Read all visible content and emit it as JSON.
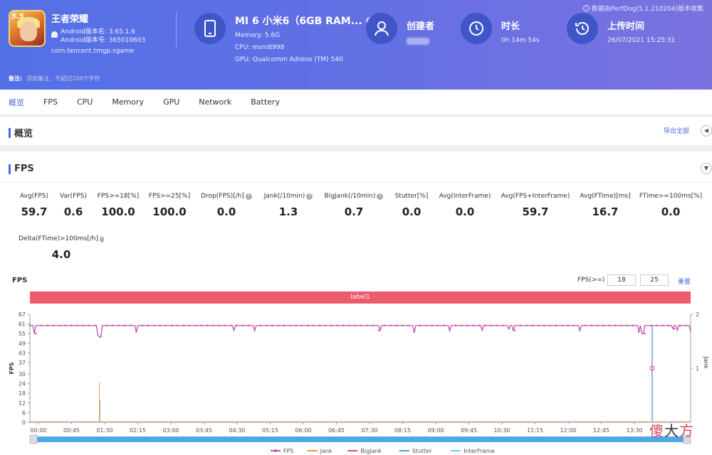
{
  "header": {
    "notice": "数据由PerfDog(5.1.210204)版本收集",
    "app": {
      "name": "王者荣耀",
      "badge": "5.5",
      "version_label": "Android版本名: 3.65.1.6",
      "build_label": "Android版本号: 365010603",
      "package": "com.tencent.tmgp.sgame"
    },
    "device": {
      "name": "MI 6 小米6（6GB RAM...",
      "memory": "Memory: 5.6G",
      "cpu": "CPU: msm8998",
      "gpu": "GPU: Qualcomm Adreno (TM) 540"
    },
    "creator": {
      "label": "创建者"
    },
    "duration": {
      "label": "时长",
      "value": "0h 14m 54s"
    },
    "upload": {
      "label": "上传时间",
      "value": "26/07/2021 15:25:31"
    },
    "remark": {
      "label": "备注:",
      "placeholder": "添加备注，不超过200个字符"
    }
  },
  "tabs": [
    "概览",
    "FPS",
    "CPU",
    "Memory",
    "GPU",
    "Network",
    "Battery"
  ],
  "overview": {
    "title": "概览",
    "export": "导出全部"
  },
  "fps_section": {
    "title": "FPS",
    "metrics": [
      {
        "label": "Avg(FPS)",
        "value": "59.7",
        "help": false
      },
      {
        "label": "Var(FPS)",
        "value": "0.6",
        "help": false
      },
      {
        "label": "FPS>=18[%]",
        "value": "100.0",
        "help": false
      },
      {
        "label": "FPS>=25[%]",
        "value": "100.0",
        "help": false
      },
      {
        "label": "Drop(FPS)[/h]",
        "value": "0.0",
        "help": true
      },
      {
        "label": "Jank(/10min)",
        "value": "1.3",
        "help": true
      },
      {
        "label": "BigJank(/10min)",
        "value": "0.7",
        "help": true
      },
      {
        "label": "Stutter[%]",
        "value": "0.0",
        "help": false
      },
      {
        "label": "Avg(InterFrame)",
        "value": "0.0",
        "help": false
      },
      {
        "label": "Avg(FPS+InterFrame)",
        "value": "59.7",
        "help": false
      },
      {
        "label": "Avg(FTime)[ms]",
        "value": "16.7",
        "help": false
      },
      {
        "label": "FTime>=100ms[%]",
        "value": "0.0",
        "help": false
      },
      {
        "label": "Delta(FTime)>100ms[/h]",
        "value": "4.0",
        "help": true
      }
    ],
    "chart_title": "FPS",
    "threshold": {
      "label": "FPS(>=)",
      "low": "18",
      "high": "25",
      "reset": "重置"
    },
    "label_bar": "label1"
  },
  "chart_data": {
    "type": "line",
    "ylabel": "FPS",
    "y2label": "Jank",
    "yticks": [
      0,
      6,
      12,
      18,
      24,
      30,
      37,
      43,
      49,
      55,
      61,
      67
    ],
    "ylim": [
      0,
      67
    ],
    "y2ticks": [
      1,
      2
    ],
    "y2lim": [
      0,
      2
    ],
    "xticks": [
      "00:00",
      "00:45",
      "01:30",
      "02:15",
      "03:00",
      "03:45",
      "04:30",
      "05:15",
      "06:00",
      "06:45",
      "07:30",
      "08:15",
      "09:00",
      "09:45",
      "10:30",
      "11:15",
      "12:00",
      "12:45",
      "13:30"
    ],
    "x_max_seconds": 894,
    "series": [
      {
        "name": "FPS",
        "color": "#c04fb4",
        "baseline": 60,
        "dips": [
          [
            6,
            55
          ],
          [
            92,
            54
          ],
          [
            95,
            53
          ],
          [
            144,
            56
          ],
          [
            276,
            57
          ],
          [
            304,
            57
          ],
          [
            474,
            57
          ],
          [
            520,
            56
          ],
          [
            568,
            57
          ],
          [
            612,
            57
          ],
          [
            648,
            58
          ],
          [
            654,
            57
          ],
          [
            744,
            57
          ],
          [
            824,
            56
          ],
          [
            829,
            55
          ],
          [
            870,
            58
          ],
          [
            876,
            57
          ],
          [
            894,
            56
          ]
        ]
      },
      {
        "name": "Jank",
        "color": "#f0913a",
        "spikes": [
          [
            94,
            1
          ]
        ]
      },
      {
        "name": "BigJank",
        "color": "#e0525e",
        "spikes": [
          [
            842,
            1
          ]
        ]
      },
      {
        "name": "Stutter",
        "color": "#5b9bd5",
        "spikes": []
      },
      {
        "name": "InterFrame",
        "color": "#6ad0f0",
        "spikes": []
      }
    ],
    "legend_position": "bottom",
    "grid": false
  }
}
